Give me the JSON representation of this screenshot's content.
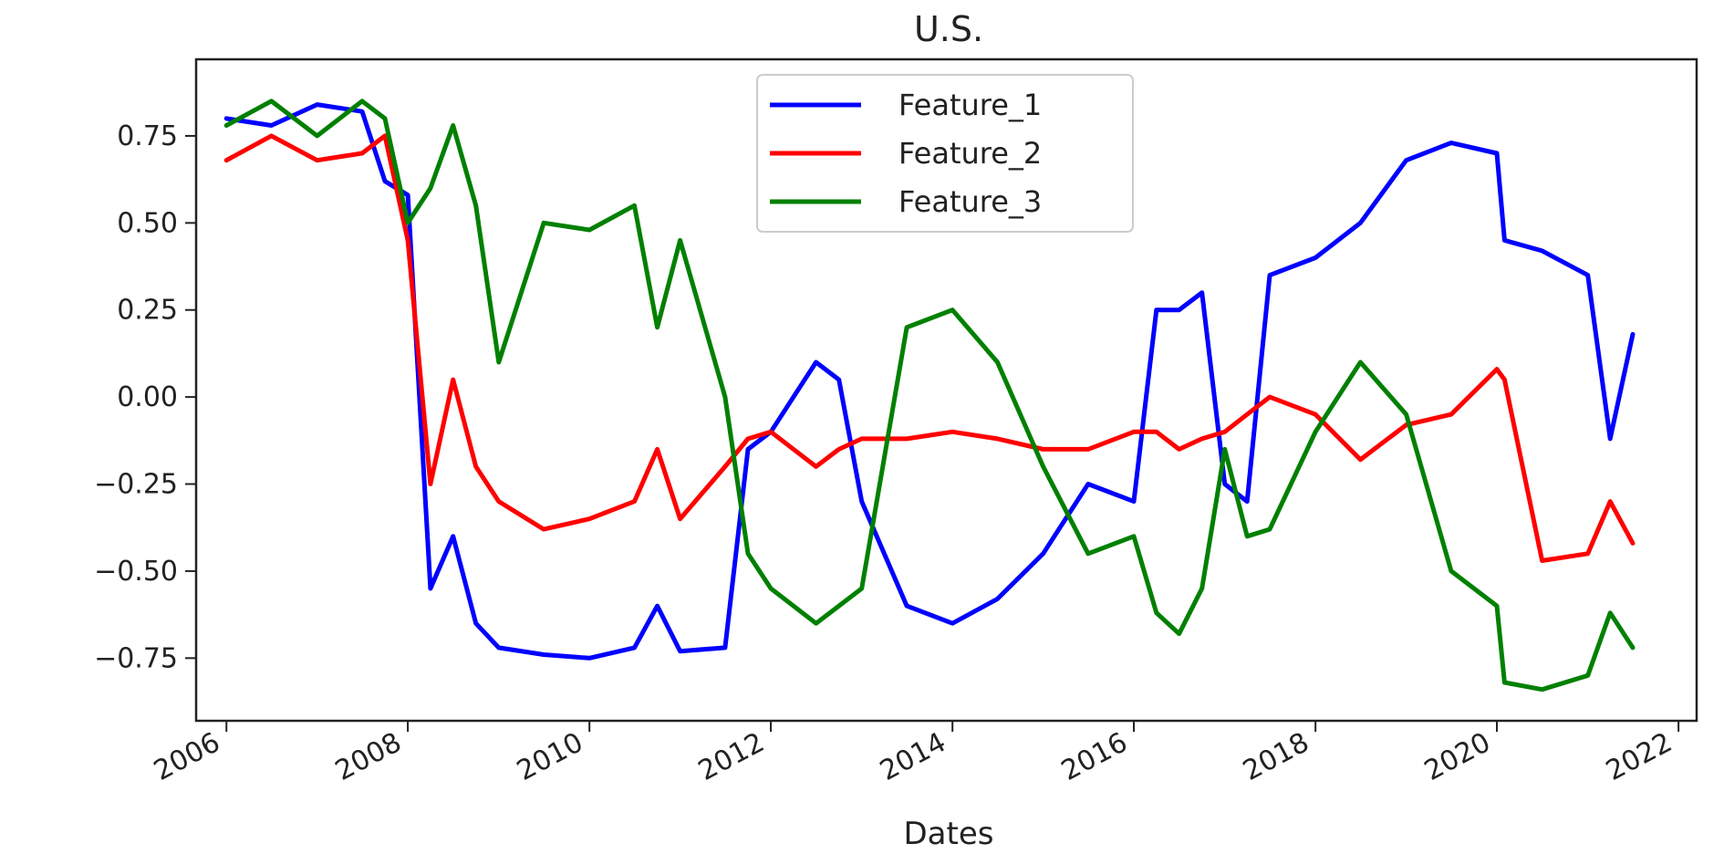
{
  "chart_data": {
    "type": "line",
    "title": "U.S.",
    "xlabel": "Dates",
    "ylabel": "",
    "xlim": [
      "2005-09-01",
      "2022-03-15"
    ],
    "ylim": [
      -0.93,
      0.97
    ],
    "x_ticks": [
      "2006",
      "2008",
      "2010",
      "2012",
      "2014",
      "2016",
      "2018",
      "2020",
      "2022"
    ],
    "y_ticks": [
      "0.75",
      "0.50",
      "0.25",
      "0.00",
      "−0.25",
      "−0.50",
      "−0.75"
    ],
    "y_tick_values": [
      0.75,
      0.5,
      0.25,
      0.0,
      -0.25,
      -0.5,
      -0.75
    ],
    "grid": false,
    "legend_position": "top-center",
    "x": [
      "2006-01",
      "2006-07",
      "2007-01",
      "2007-07",
      "2007-10",
      "2008-01",
      "2008-04",
      "2008-07",
      "2008-10",
      "2009-01",
      "2009-07",
      "2010-01",
      "2010-07",
      "2010-10",
      "2011-01",
      "2011-07",
      "2011-10",
      "2012-01",
      "2012-07",
      "2012-10",
      "2013-01",
      "2013-07",
      "2014-01",
      "2014-07",
      "2015-01",
      "2015-07",
      "2016-01",
      "2016-04",
      "2016-07",
      "2016-10",
      "2017-01",
      "2017-04",
      "2017-07",
      "2018-01",
      "2018-07",
      "2019-01",
      "2019-07",
      "2020-01",
      "2020-02",
      "2020-07",
      "2021-01",
      "2021-04",
      "2021-07"
    ],
    "series": [
      {
        "name": "Feature_1",
        "color": "#0000ff",
        "values": [
          0.8,
          0.78,
          0.84,
          0.82,
          0.62,
          0.58,
          -0.55,
          -0.4,
          -0.65,
          -0.72,
          -0.74,
          -0.75,
          -0.72,
          -0.6,
          -0.73,
          -0.72,
          -0.15,
          -0.1,
          0.1,
          0.05,
          -0.3,
          -0.6,
          -0.65,
          -0.58,
          -0.45,
          -0.25,
          -0.3,
          0.25,
          0.25,
          0.3,
          -0.25,
          -0.3,
          0.35,
          0.4,
          0.5,
          0.68,
          0.73,
          0.7,
          0.45,
          0.42,
          0.35,
          -0.12,
          0.18
        ]
      },
      {
        "name": "Feature_2",
        "color": "#ff0000",
        "values": [
          0.68,
          0.75,
          0.68,
          0.7,
          0.75,
          0.45,
          -0.25,
          0.05,
          -0.2,
          -0.3,
          -0.38,
          -0.35,
          -0.3,
          -0.15,
          -0.35,
          -0.2,
          -0.12,
          -0.1,
          -0.2,
          -0.15,
          -0.12,
          -0.12,
          -0.1,
          -0.12,
          -0.15,
          -0.15,
          -0.1,
          -0.1,
          -0.15,
          -0.12,
          -0.1,
          -0.05,
          0.0,
          -0.05,
          -0.18,
          -0.08,
          -0.05,
          0.08,
          0.05,
          -0.47,
          -0.45,
          -0.3,
          -0.42
        ]
      },
      {
        "name": "Feature_3",
        "color": "#008000",
        "values": [
          0.78,
          0.85,
          0.75,
          0.85,
          0.8,
          0.5,
          0.6,
          0.78,
          0.55,
          0.1,
          0.5,
          0.48,
          0.55,
          0.2,
          0.45,
          0.0,
          -0.45,
          -0.55,
          -0.65,
          -0.6,
          -0.55,
          0.2,
          0.25,
          0.1,
          -0.2,
          -0.45,
          -0.4,
          -0.62,
          -0.68,
          -0.55,
          -0.15,
          -0.4,
          -0.38,
          -0.1,
          0.1,
          -0.05,
          -0.5,
          -0.6,
          -0.82,
          -0.84,
          -0.8,
          -0.62,
          -0.72
        ]
      }
    ]
  }
}
